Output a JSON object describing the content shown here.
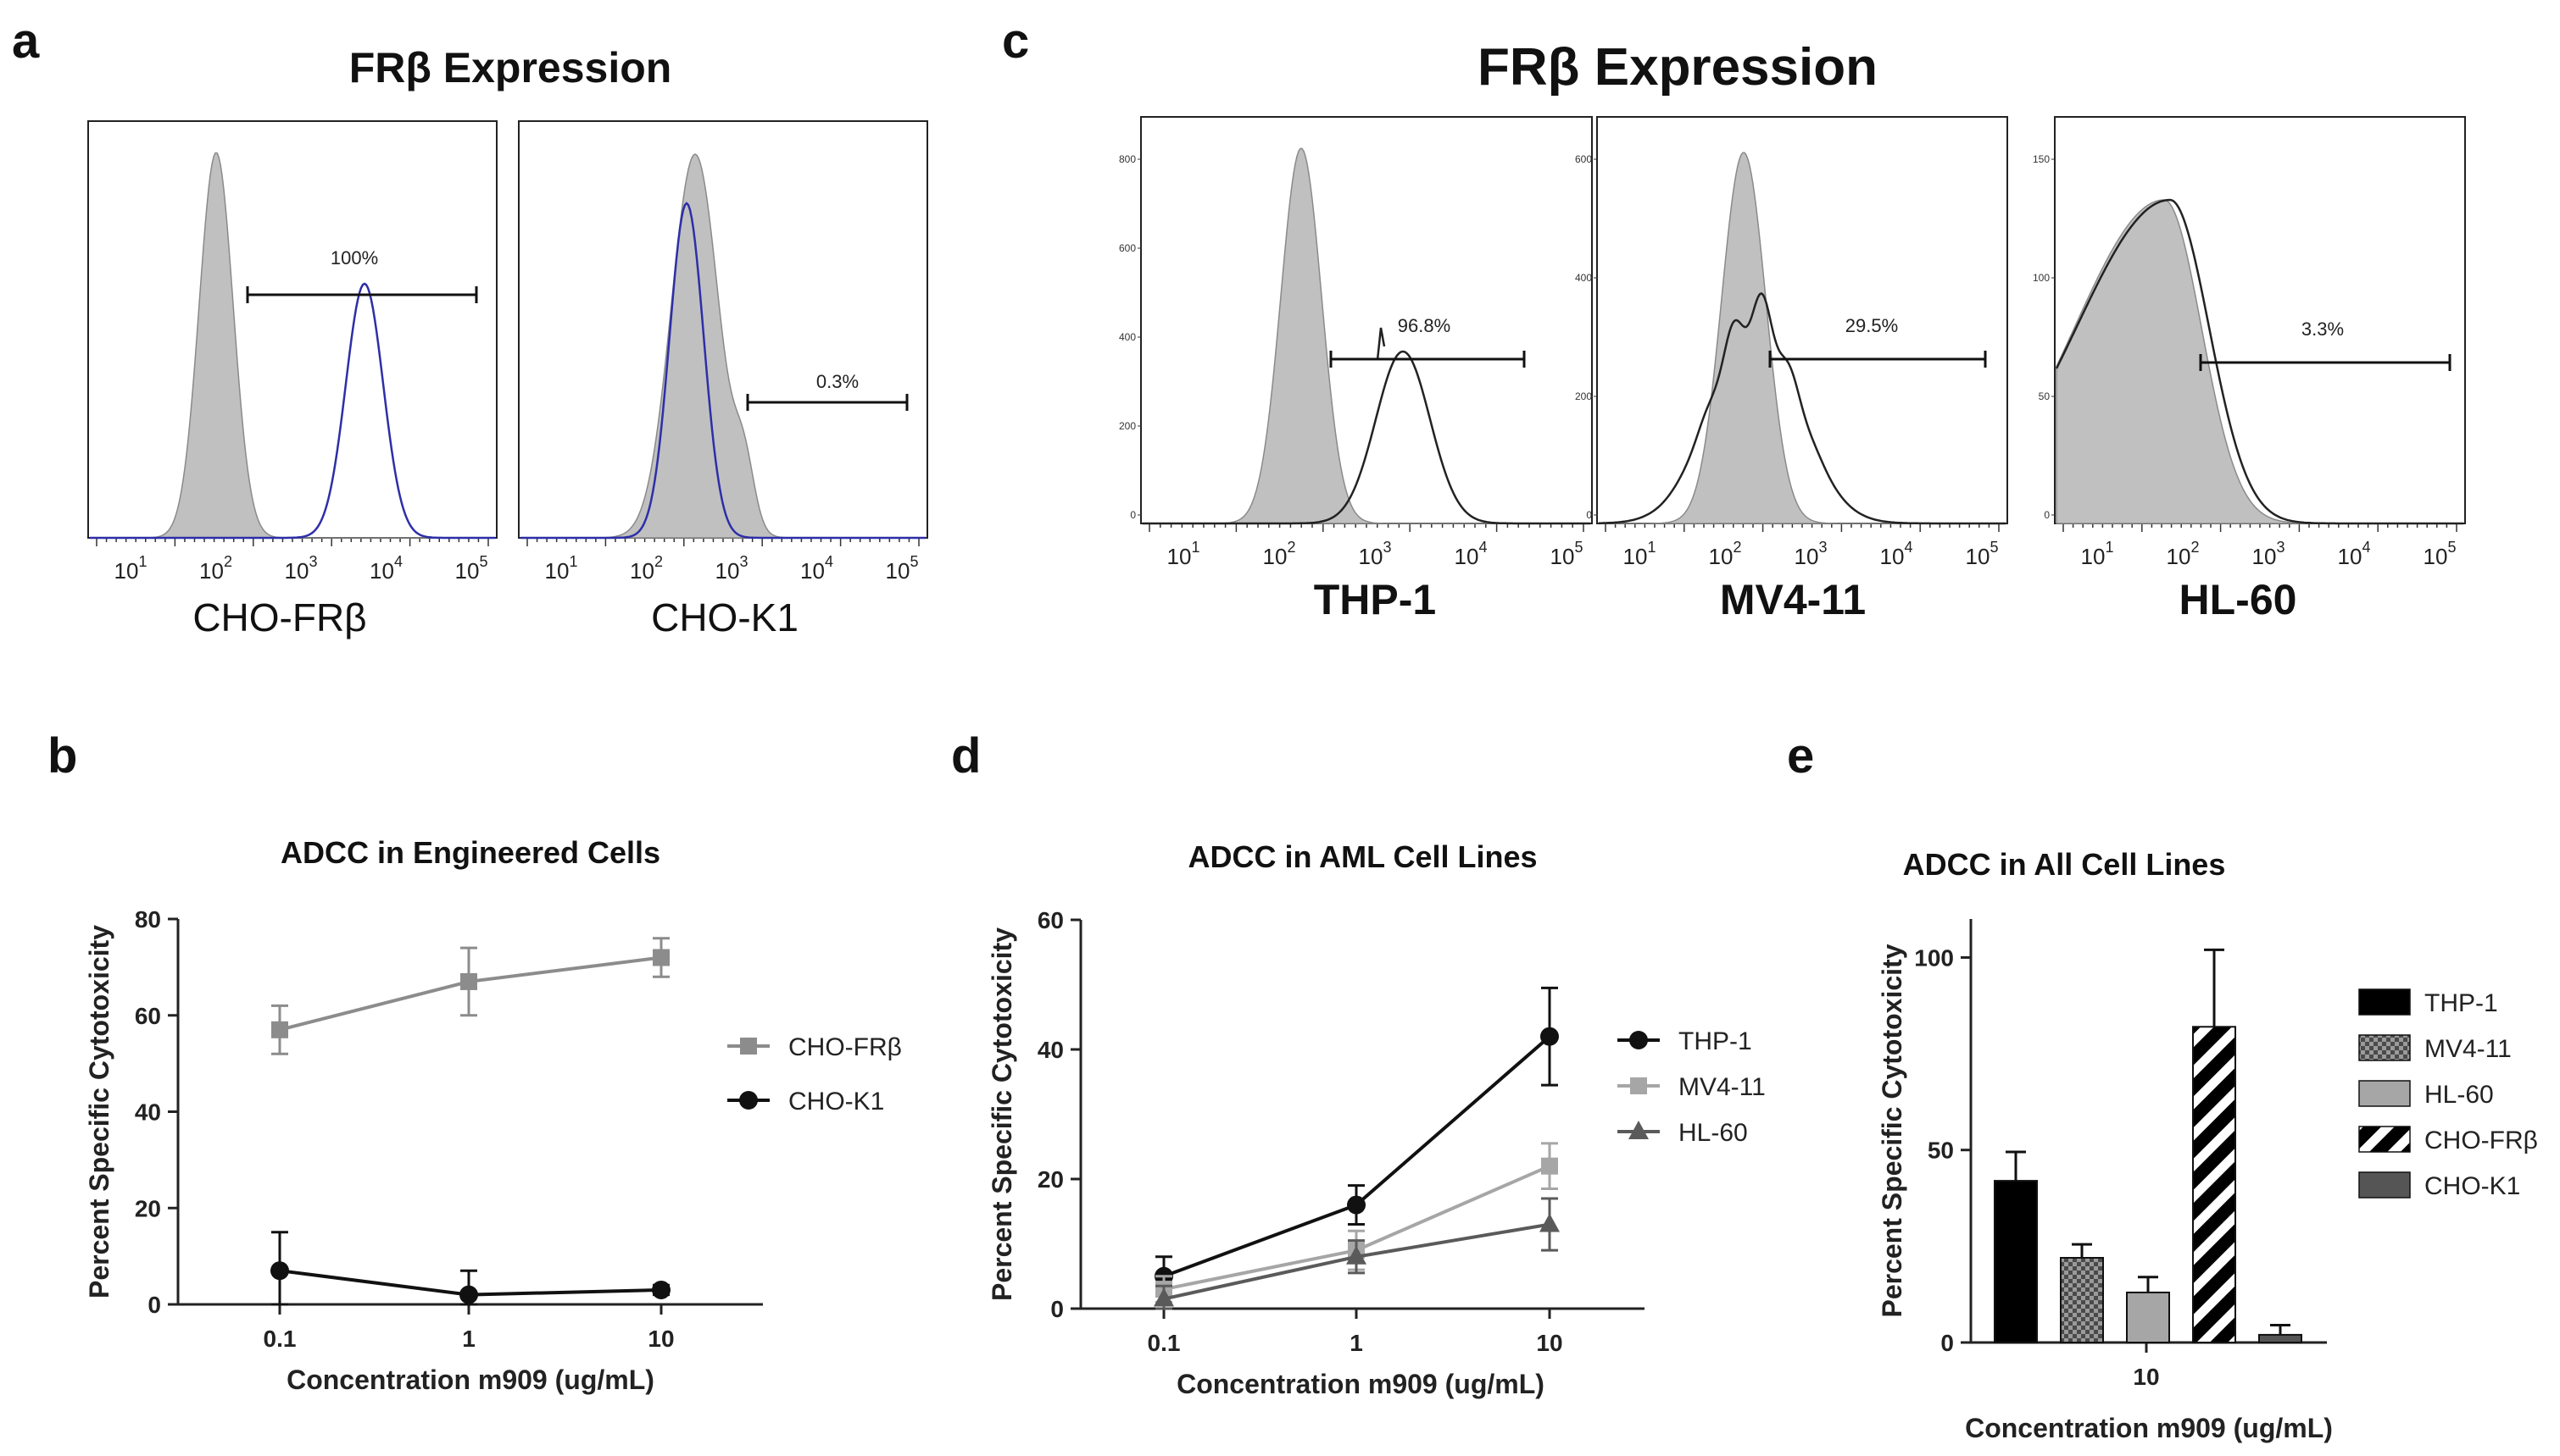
{
  "panels": {
    "a": "a",
    "b": "b",
    "c": "c",
    "d": "d",
    "e": "e"
  },
  "histograms": {
    "title_a": "FRβ Expression",
    "title_c": "FRβ Expression",
    "x_ticks": [
      "10",
      "10",
      "10",
      "10",
      "10"
    ],
    "x_tick_exps": [
      "1",
      "2",
      "3",
      "4",
      "5"
    ],
    "plots": [
      {
        "label": "CHO-FRβ",
        "gate": "100%",
        "axis": ""
      },
      {
        "label": "CHO-K1",
        "gate": "0.3%",
        "axis": ""
      },
      {
        "label": "THP-1",
        "gate": "96.8%",
        "axis": [
          "800",
          "600",
          "400",
          "200",
          "0"
        ]
      },
      {
        "label": "MV4-11",
        "gate": "29.5%",
        "axis": [
          "600",
          "400",
          "200",
          "0"
        ]
      },
      {
        "label": "HL-60",
        "gate": "3.3%",
        "axis": [
          "150",
          "100",
          "50",
          "0"
        ]
      }
    ]
  },
  "chart_data": [
    {
      "panel": "b",
      "type": "line",
      "title": "ADCC in Engineered Cells",
      "xlabel": "Concentration m909 (ug/mL)",
      "ylabel": "Percent Specific Cytotoxicity",
      "x_scale": "log",
      "categories": [
        "0.1",
        "1",
        "10"
      ],
      "ylim": [
        0,
        80
      ],
      "yticks": [
        "0",
        "20",
        "40",
        "60",
        "80"
      ],
      "series": [
        {
          "name": "CHO-FRβ",
          "values": [
            57,
            67,
            72
          ],
          "errors": [
            5,
            7,
            4
          ],
          "color": "#8c8c8c",
          "marker": "square"
        },
        {
          "name": "CHO-K1",
          "values": [
            7,
            2,
            3
          ],
          "errors": [
            8,
            5,
            1
          ],
          "color": "#111111",
          "marker": "circle"
        }
      ]
    },
    {
      "panel": "d",
      "type": "line",
      "title": "ADCC in AML Cell Lines",
      "xlabel": "Concentration m909 (ug/mL)",
      "ylabel": "Percent Specific Cytotoxicity",
      "x_scale": "log",
      "categories": [
        "0.1",
        "1",
        "10"
      ],
      "ylim": [
        0,
        60
      ],
      "yticks": [
        "0",
        "20",
        "40",
        "60"
      ],
      "series": [
        {
          "name": "THP-1",
          "values": [
            5,
            16,
            42
          ],
          "errors": [
            3,
            3,
            7.5
          ],
          "color": "#111111",
          "marker": "circle"
        },
        {
          "name": "MV4-11",
          "values": [
            3,
            9,
            22
          ],
          "errors": [
            2,
            3,
            3.5
          ],
          "color": "#a6a6a6",
          "marker": "square"
        },
        {
          "name": "HL-60",
          "values": [
            1.5,
            8,
            13
          ],
          "errors": [
            2,
            2.5,
            4
          ],
          "color": "#5a5a5a",
          "marker": "triangle"
        }
      ]
    },
    {
      "panel": "e",
      "type": "bar",
      "title": "ADCC in All Cell Lines",
      "xlabel": "Concentration m909 (ug/mL)",
      "ylabel": "Percent Specific Cytotoxicity",
      "categories": [
        "10"
      ],
      "ylim": [
        0,
        110
      ],
      "yticks": [
        "0",
        "50",
        "100"
      ],
      "series": [
        {
          "name": "THP-1",
          "values": [
            42
          ],
          "errors": [
            7.5
          ],
          "color": "#000000",
          "pattern": "solid"
        },
        {
          "name": "MV4-11",
          "values": [
            22
          ],
          "errors": [
            3.5
          ],
          "color": "#7a7a7a",
          "pattern": "checker"
        },
        {
          "name": "HL-60",
          "values": [
            13
          ],
          "errors": [
            4
          ],
          "color": "#a6a6a6",
          "pattern": "solid"
        },
        {
          "name": "CHO-FRβ",
          "values": [
            82
          ],
          "errors": [
            20
          ],
          "color": "#000000",
          "pattern": "diagonal"
        },
        {
          "name": "CHO-K1",
          "values": [
            2
          ],
          "errors": [
            2.5
          ],
          "color": "#555555",
          "pattern": "solid"
        }
      ]
    }
  ]
}
